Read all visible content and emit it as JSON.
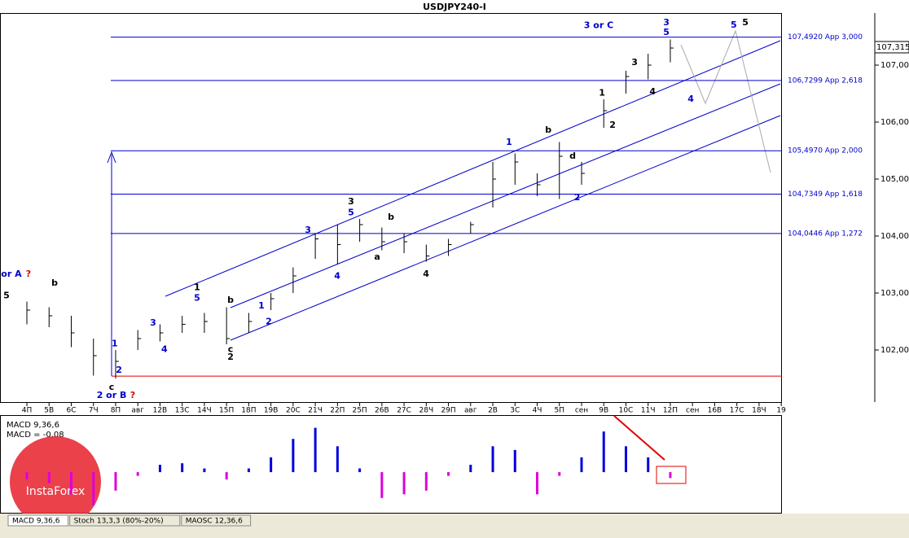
{
  "chart_data": {
    "type": "ohlc",
    "title": "USDJPY240-I",
    "categories": [
      "4П",
      "5В",
      "6С",
      "7Ч",
      "8П",
      "авг",
      "12В",
      "13С",
      "14Ч",
      "15П",
      "18П",
      "19В",
      "20С",
      "21Ч",
      "22П",
      "25П",
      "26В",
      "27С",
      "28Ч",
      "29П",
      "авг",
      "2В",
      "3С",
      "4Ч",
      "5П",
      "сен",
      "9В",
      "10С",
      "11Ч",
      "12П",
      "сен",
      "16В",
      "17С",
      "18Ч",
      "19"
    ],
    "high": [
      102.85,
      102.75,
      102.6,
      102.2,
      102.0,
      102.35,
      102.45,
      102.6,
      102.65,
      102.75,
      102.65,
      103.0,
      103.45,
      104.05,
      104.2,
      104.3,
      104.15,
      104.05,
      103.85,
      103.95,
      104.25,
      105.3,
      105.45,
      105.1,
      105.65,
      105.3,
      106.4,
      106.9,
      107.2,
      107.45,
      null,
      null,
      null,
      null,
      null
    ],
    "low": [
      102.45,
      102.4,
      102.05,
      101.55,
      101.5,
      102.0,
      102.15,
      102.3,
      102.3,
      102.1,
      102.3,
      102.7,
      103.0,
      103.6,
      103.5,
      103.9,
      103.75,
      103.7,
      103.55,
      103.65,
      104.05,
      104.5,
      104.9,
      104.7,
      104.65,
      104.9,
      105.9,
      106.5,
      106.75,
      107.05,
      null,
      null,
      null,
      null,
      null
    ],
    "close": [
      102.7,
      102.6,
      102.3,
      101.9,
      101.8,
      102.2,
      102.3,
      102.45,
      102.5,
      102.2,
      102.5,
      102.9,
      103.3,
      103.95,
      103.85,
      104.2,
      103.9,
      103.9,
      103.65,
      103.85,
      104.2,
      105.0,
      105.3,
      104.9,
      105.4,
      105.1,
      106.2,
      106.8,
      107.0,
      107.3,
      null,
      null,
      null,
      null,
      null
    ],
    "ylim": [
      101.071,
      107.886
    ],
    "yticks": [
      {
        "value": 102,
        "label": "102,000"
      },
      {
        "value": 103,
        "label": "103,000"
      },
      {
        "value": 104,
        "label": "104,000"
      },
      {
        "value": 105,
        "label": "105,000"
      },
      {
        "value": 106,
        "label": "106,000"
      },
      {
        "value": 107,
        "label": "107,000"
      }
    ],
    "current_price": {
      "value": 107.315,
      "label": "107,315"
    },
    "levels": [
      {
        "value": 107.492,
        "label": "107,4920 App 3,000"
      },
      {
        "value": 106.7299,
        "label": "106,7299 App 2,618"
      },
      {
        "value": 105.497,
        "label": "105,4970 App 2,000"
      },
      {
        "value": 104.7349,
        "label": "104,7349 App 1,618"
      },
      {
        "value": 104.0446,
        "label": "104,0446 App 1,272"
      }
    ],
    "support": 101.54,
    "annotations": [
      {
        "text": "5",
        "i": -0.92,
        "price": 102.95,
        "color": "#000"
      },
      {
        "text": "or A",
        "i": -0.7,
        "price": 103.33,
        "color": "#0000cc"
      },
      {
        "text": "?",
        "i": 0.07,
        "price": 103.33,
        "color": "#e00000"
      },
      {
        "text": "b",
        "i": 1.25,
        "price": 103.17,
        "color": "#000"
      },
      {
        "text": "c",
        "i": 3.82,
        "price": 101.34,
        "color": "#000"
      },
      {
        "text": "2 or B",
        "i": 3.82,
        "price": 101.2,
        "color": "#0000cc"
      },
      {
        "text": "?",
        "i": 4.77,
        "price": 101.2,
        "color": "#e00000"
      },
      {
        "text": "1",
        "i": 3.96,
        "price": 102.11,
        "color": "#0000cc"
      },
      {
        "text": "2",
        "i": 4.15,
        "price": 101.64,
        "color": "#0000cc"
      },
      {
        "text": "3",
        "i": 5.69,
        "price": 102.47,
        "color": "#0000cc"
      },
      {
        "text": "4",
        "i": 6.2,
        "price": 102.01,
        "color": "#0000cc"
      },
      {
        "text": "1",
        "i": 7.67,
        "price": 103.09,
        "color": "#000"
      },
      {
        "text": "5",
        "i": 7.67,
        "price": 102.91,
        "color": "#0000cc"
      },
      {
        "text": "b",
        "i": 9.18,
        "price": 102.87,
        "color": "#000"
      },
      {
        "text": "c",
        "i": 9.18,
        "price": 102.01,
        "color": "#000"
      },
      {
        "text": "2",
        "i": 9.18,
        "price": 101.87,
        "color": "#000"
      },
      {
        "text": "1",
        "i": 10.57,
        "price": 102.77,
        "color": "#0000cc"
      },
      {
        "text": "2",
        "i": 10.9,
        "price": 102.49,
        "color": "#0000cc"
      },
      {
        "text": "3",
        "i": 12.67,
        "price": 104.1,
        "color": "#0000cc"
      },
      {
        "text": "3",
        "i": 14.61,
        "price": 104.6,
        "color": "#000"
      },
      {
        "text": "5",
        "i": 14.61,
        "price": 104.41,
        "color": "#0000cc"
      },
      {
        "text": "4",
        "i": 13.99,
        "price": 103.29,
        "color": "#0000cc"
      },
      {
        "text": "b",
        "i": 16.41,
        "price": 104.33,
        "color": "#000"
      },
      {
        "text": "a",
        "i": 15.79,
        "price": 103.63,
        "color": "#000"
      },
      {
        "text": "4",
        "i": 17.99,
        "price": 103.33,
        "color": "#000"
      },
      {
        "text": "1",
        "i": 21.73,
        "price": 105.64,
        "color": "#0000cc"
      },
      {
        "text": "b",
        "i": 23.5,
        "price": 105.86,
        "color": "#000"
      },
      {
        "text": "d",
        "i": 24.6,
        "price": 105.4,
        "color": "#000"
      },
      {
        "text": "2",
        "i": 24.8,
        "price": 104.67,
        "color": "#0000cc"
      },
      {
        "text": "1",
        "i": 25.92,
        "price": 106.51,
        "color": "#000"
      },
      {
        "text": "2",
        "i": 26.4,
        "price": 105.94,
        "color": "#000"
      },
      {
        "text": "3",
        "i": 27.39,
        "price": 107.04,
        "color": "#000"
      },
      {
        "text": "4",
        "i": 28.2,
        "price": 106.53,
        "color": "#000"
      },
      {
        "text": "4",
        "i": 29.92,
        "price": 106.4,
        "color": "#0000cc"
      },
      {
        "text": "3 or C",
        "i": 25.77,
        "price": 107.69,
        "color": "#0000cc"
      },
      {
        "text": "3",
        "i": 28.82,
        "price": 107.74,
        "color": "#0000cc"
      },
      {
        "text": "5",
        "i": 28.82,
        "price": 107.57,
        "color": "#0000cc"
      },
      {
        "text": "5",
        "i": 31.86,
        "price": 107.7,
        "color": "#0000cc"
      },
      {
        "text": "5",
        "i": 32.38,
        "price": 107.74,
        "color": "#000"
      }
    ],
    "macd_label": "MACD 9,36,6",
    "macd_value_label": "MACD = -0,08",
    "macd": [
      -0.1,
      -0.15,
      -0.3,
      -0.45,
      -0.25,
      -0.05,
      0.1,
      0.12,
      0.05,
      -0.1,
      0.05,
      0.2,
      0.45,
      0.6,
      0.35,
      0.05,
      -0.35,
      -0.3,
      -0.25,
      -0.05,
      0.1,
      0.35,
      0.3,
      -0.3,
      -0.05,
      0.2,
      0.55,
      0.35,
      0.2,
      -0.08,
      null,
      null,
      null,
      null,
      null
    ],
    "macd_ylim": [
      -0.55,
      0.75
    ],
    "tabs": [
      "MACD 9,36,6",
      "Stoch 13,3,3 (80%-20%)",
      "MAOSC 12,36,6"
    ],
    "logo": "InstaForex"
  }
}
